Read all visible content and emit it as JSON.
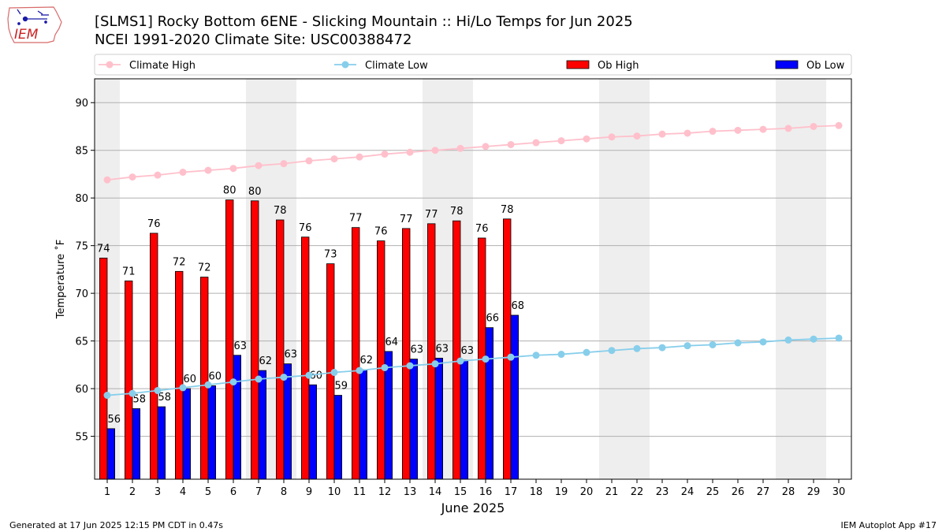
{
  "header": {
    "title_line1": "[SLMS1] Rocky Bottom 6ENE - Slicking Mountain :: Hi/Lo Temps for Jun 2025",
    "title_line2": "NCEI 1991-2020 Climate Site: USC00388472",
    "logo_text": "IEM"
  },
  "footer": {
    "left": "Generated at 17 Jun 2025 12:15 PM CDT in 0.47s",
    "right": "IEM Autoplot App #17"
  },
  "colors": {
    "climate_high": "#FFC0CB",
    "climate_low": "#87CEEB",
    "ob_high": "#FF0000",
    "ob_low": "#0000FF",
    "weekend_shade": "#EEEEEE",
    "grid": "#B0B0B0"
  },
  "chart_data": {
    "type": "bar",
    "xlabel": "June 2025",
    "ylabel": "Temperature ˚F",
    "ylim": [
      50.5,
      92.5
    ],
    "yticks": [
      55,
      60,
      65,
      70,
      75,
      80,
      85,
      90
    ],
    "xlim": [
      0.5,
      30.5
    ],
    "legend_placement": "top, above plot",
    "grid": "horizontal",
    "days": [
      1,
      2,
      3,
      4,
      5,
      6,
      7,
      8,
      9,
      10,
      11,
      12,
      13,
      14,
      15,
      16,
      17,
      18,
      19,
      20,
      21,
      22,
      23,
      24,
      25,
      26,
      27,
      28,
      29,
      30
    ],
    "weekend_shaded_days": [
      1,
      7,
      8,
      14,
      15,
      21,
      22,
      28,
      29
    ],
    "series": [
      {
        "name": "Climate High",
        "kind": "line",
        "values": [
          81.9,
          82.2,
          82.4,
          82.7,
          82.9,
          83.1,
          83.4,
          83.6,
          83.9,
          84.1,
          84.3,
          84.6,
          84.8,
          85.0,
          85.2,
          85.4,
          85.6,
          85.8,
          86.0,
          86.2,
          86.4,
          86.5,
          86.7,
          86.8,
          87.0,
          87.1,
          87.2,
          87.3,
          87.5,
          87.6
        ]
      },
      {
        "name": "Climate Low",
        "kind": "line",
        "values": [
          59.3,
          59.5,
          59.8,
          60.1,
          60.4,
          60.7,
          61.0,
          61.2,
          61.4,
          61.7,
          61.9,
          62.2,
          62.4,
          62.6,
          62.9,
          63.1,
          63.3,
          63.5,
          63.6,
          63.8,
          64.0,
          64.2,
          64.3,
          64.5,
          64.6,
          64.8,
          64.9,
          65.1,
          65.2,
          65.3
        ]
      },
      {
        "name": "Ob High",
        "kind": "bar",
        "values": [
          73.7,
          71.3,
          76.3,
          72.3,
          71.7,
          79.8,
          79.7,
          77.7,
          75.9,
          73.1,
          76.9,
          75.5,
          76.8,
          77.3,
          77.6,
          75.8,
          77.8
        ]
      },
      {
        "name": "Ob Low",
        "kind": "bar",
        "values": [
          55.8,
          57.9,
          58.1,
          60.0,
          60.3,
          63.5,
          61.9,
          62.6,
          60.4,
          59.3,
          62.0,
          63.9,
          63.1,
          63.2,
          63.0,
          66.4,
          67.7
        ]
      }
    ],
    "data_labels_high": [
      "74",
      "71",
      "76",
      "72",
      "72",
      "80",
      "80",
      "78",
      "76",
      "73",
      "77",
      "76",
      "77",
      "77",
      "78",
      "76",
      "78"
    ],
    "data_labels_low": [
      "56",
      "58",
      "58",
      "60",
      "60",
      "63",
      "62",
      "63",
      "60",
      "59",
      "62",
      "64",
      "63",
      "63",
      "63",
      "66",
      "68"
    ]
  }
}
